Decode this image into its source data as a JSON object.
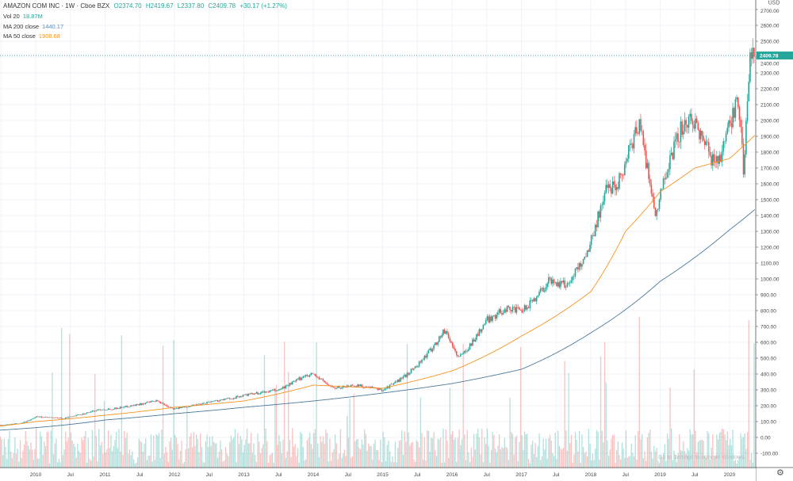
{
  "header": {
    "symbol": "AMAZON COM INC · 1W · Cboe BZX",
    "ohlc": [
      "O2374.70",
      "H2419.67",
      "L2337.80",
      "C2409.78",
      "+30.17 (+1.27%)"
    ]
  },
  "indicators": [
    {
      "label": "Vol 20",
      "value": "18.87M",
      "color": "#26a69a"
    },
    {
      "label": "MA 200 close",
      "value": "1440.17",
      "color": "#5b8db8"
    },
    {
      "label": "MA 50 close",
      "value": "1908.68",
      "color": "#f7931e"
    }
  ],
  "watermark": "Go to Settings to activate Windows.",
  "settings_icon": "gear-icon",
  "colors": {
    "up": "#26a69a",
    "down": "#ef5350",
    "ma200": "#4a7a99",
    "ma50": "#f7931e",
    "last": "#26a69a"
  },
  "chart_data": {
    "type": "candlestick",
    "title": "AMAZON COM INC · 1W · Cboe BZX",
    "currency": "USD",
    "ylim": [
      -100,
      2700
    ],
    "y_ticks": [
      "2700.00",
      "2600.00",
      "2500.00",
      "2400.00",
      "2300.00",
      "2200.00",
      "2100.00",
      "2000.00",
      "1900.00",
      "1800.00",
      "1700.00",
      "1600.00",
      "1500.00",
      "1400.00",
      "1300.00",
      "1200.00",
      "1100.00",
      "1000.00",
      "900.00",
      "800.00",
      "700.00",
      "600.00",
      "500.00",
      "400.00",
      "300.00",
      "200.00",
      "100.00",
      "0.00",
      "-100.00"
    ],
    "y_tick_values": [
      2700,
      2600,
      2500,
      2400,
      2300,
      2200,
      2100,
      2000,
      1900,
      1800,
      1700,
      1600,
      1500,
      1400,
      1300,
      1200,
      1100,
      1000,
      900,
      800,
      700,
      600,
      500,
      400,
      300,
      200,
      100,
      0,
      -100
    ],
    "x_ticks": [
      {
        "label": "Jul",
        "t": 2009.5
      },
      {
        "label": "2010",
        "t": 2010
      },
      {
        "label": "Jul",
        "t": 2010.5
      },
      {
        "label": "2011",
        "t": 2011
      },
      {
        "label": "Jul",
        "t": 2011.5
      },
      {
        "label": "2012",
        "t": 2012
      },
      {
        "label": "Jul",
        "t": 2012.5
      },
      {
        "label": "2013",
        "t": 2013
      },
      {
        "label": "Jul",
        "t": 2013.5
      },
      {
        "label": "2014",
        "t": 2014
      },
      {
        "label": "Jul",
        "t": 2014.5
      },
      {
        "label": "2015",
        "t": 2015
      },
      {
        "label": "Jul",
        "t": 2015.5
      },
      {
        "label": "2016",
        "t": 2016
      },
      {
        "label": "Jul",
        "t": 2016.5
      },
      {
        "label": "2017",
        "t": 2017
      },
      {
        "label": "Jul",
        "t": 2017.5
      },
      {
        "label": "2018",
        "t": 2018
      },
      {
        "label": "Jul",
        "t": 2018.5
      },
      {
        "label": "2019",
        "t": 2019
      },
      {
        "label": "Jul",
        "t": 2019.5
      },
      {
        "label": "2020",
        "t": 2020
      },
      {
        "label": "Jul",
        "t": 2020.5
      }
    ],
    "last_price": "2409.78",
    "last_value": 2409.78,
    "price_anchors": [
      [
        2009.45,
        75
      ],
      [
        2009.8,
        90
      ],
      [
        2010,
        130
      ],
      [
        2010.4,
        120
      ],
      [
        2010.9,
        175
      ],
      [
        2011.1,
        180
      ],
      [
        2011.5,
        210
      ],
      [
        2011.75,
        230
      ],
      [
        2012,
        180
      ],
      [
        2012.5,
        225
      ],
      [
        2012.8,
        245
      ],
      [
        2013,
        265
      ],
      [
        2013.5,
        300
      ],
      [
        2013.9,
        395
      ],
      [
        2014.0,
        400
      ],
      [
        2014.3,
        310
      ],
      [
        2014.6,
        330
      ],
      [
        2015,
        300
      ],
      [
        2015.3,
        380
      ],
      [
        2015.55,
        480
      ],
      [
        2015.9,
        680
      ],
      [
        2016.1,
        500
      ],
      [
        2016.5,
        740
      ],
      [
        2016.8,
        820
      ],
      [
        2017,
        790
      ],
      [
        2017.4,
        990
      ],
      [
        2017.65,
        960
      ],
      [
        2017.95,
        1170
      ],
      [
        2018.2,
        1550
      ],
      [
        2018.4,
        1620
      ],
      [
        2018.7,
        2000
      ],
      [
        2018.95,
        1400
      ],
      [
        2019.05,
        1650
      ],
      [
        2019.3,
        1950
      ],
      [
        2019.5,
        2000
      ],
      [
        2019.75,
        1750
      ],
      [
        2019.9,
        1800
      ],
      [
        2020.05,
        2050
      ],
      [
        2020.12,
        2150
      ],
      [
        2020.2,
        1700
      ],
      [
        2020.3,
        2400
      ],
      [
        2020.37,
        2409.78
      ]
    ],
    "ma200_anchors": [
      [
        2009.45,
        45
      ],
      [
        2011,
        110
      ],
      [
        2012,
        150
      ],
      [
        2013,
        190
      ],
      [
        2014,
        230
      ],
      [
        2015,
        280
      ],
      [
        2016,
        340
      ],
      [
        2017,
        430
      ],
      [
        2018,
        660
      ],
      [
        2019,
        985
      ],
      [
        2020,
        1310
      ],
      [
        2020.37,
        1440.17
      ]
    ],
    "ma50_anchors": [
      [
        2009.45,
        70
      ],
      [
        2010,
        100
      ],
      [
        2011,
        140
      ],
      [
        2012,
        190
      ],
      [
        2013,
        230
      ],
      [
        2014,
        330
      ],
      [
        2015,
        310
      ],
      [
        2016,
        420
      ],
      [
        2017,
        640
      ],
      [
        2018,
        920
      ],
      [
        2018.5,
        1300
      ],
      [
        2019,
        1550
      ],
      [
        2019.5,
        1700
      ],
      [
        2020,
        1760
      ],
      [
        2020.37,
        1908.68
      ]
    ],
    "volume": {
      "label": "Vol 20",
      "last": "18.87M"
    }
  }
}
